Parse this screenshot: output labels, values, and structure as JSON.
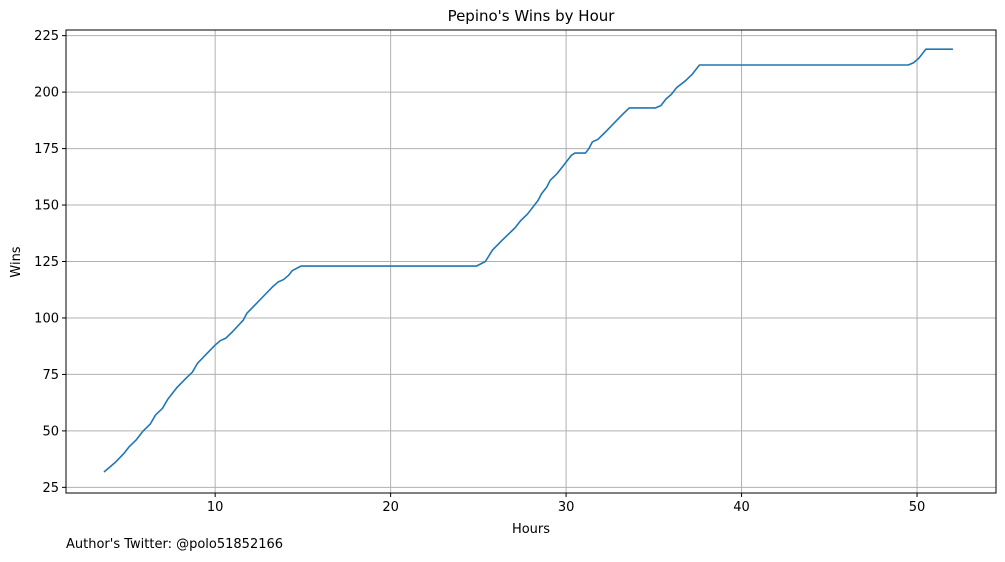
{
  "chart_data": {
    "type": "line",
    "title": "Pepino's Wins by Hour",
    "xlabel": "Hours",
    "ylabel": "Wins",
    "xlim": [
      1.5,
      54.5
    ],
    "ylim": [
      22.5,
      227.5
    ],
    "x_ticks": [
      10,
      20,
      30,
      40,
      50
    ],
    "y_ticks": [
      25,
      50,
      75,
      100,
      125,
      150,
      175,
      200,
      225
    ],
    "grid": true,
    "series": [
      {
        "color": "#1f77b4",
        "points": [
          [
            3.7,
            32
          ],
          [
            4.3,
            36
          ],
          [
            4.8,
            40
          ],
          [
            5.1,
            43
          ],
          [
            5.5,
            46
          ],
          [
            5.9,
            50
          ],
          [
            6.3,
            53
          ],
          [
            6.6,
            57
          ],
          [
            7.0,
            60
          ],
          [
            7.3,
            64
          ],
          [
            7.6,
            67
          ],
          [
            7.8,
            69
          ],
          [
            8.3,
            73
          ],
          [
            8.7,
            76
          ],
          [
            9.0,
            80
          ],
          [
            9.5,
            84
          ],
          [
            10.0,
            88
          ],
          [
            10.3,
            90
          ],
          [
            10.6,
            91
          ],
          [
            11.0,
            94
          ],
          [
            11.6,
            99
          ],
          [
            11.8,
            102
          ],
          [
            12.3,
            106
          ],
          [
            12.8,
            110
          ],
          [
            13.3,
            114
          ],
          [
            13.6,
            116
          ],
          [
            13.9,
            117
          ],
          [
            14.2,
            119
          ],
          [
            14.4,
            121
          ],
          [
            14.9,
            123
          ],
          [
            15.5,
            123
          ],
          [
            20,
            123
          ],
          [
            24.9,
            123
          ],
          [
            25.4,
            125
          ],
          [
            25.8,
            130
          ],
          [
            26.3,
            134
          ],
          [
            26.7,
            137
          ],
          [
            27.1,
            140
          ],
          [
            27.4,
            143
          ],
          [
            27.8,
            146
          ],
          [
            28.1,
            149
          ],
          [
            28.4,
            152
          ],
          [
            28.6,
            155
          ],
          [
            28.9,
            158
          ],
          [
            29.1,
            161
          ],
          [
            29.5,
            164
          ],
          [
            29.9,
            168
          ],
          [
            30.3,
            172
          ],
          [
            30.5,
            173
          ],
          [
            31.1,
            173
          ],
          [
            31.3,
            175
          ],
          [
            31.5,
            178
          ],
          [
            31.8,
            179
          ],
          [
            32.2,
            182
          ],
          [
            32.7,
            186
          ],
          [
            33.2,
            190
          ],
          [
            33.6,
            193
          ],
          [
            35.1,
            193
          ],
          [
            35.4,
            194
          ],
          [
            35.7,
            197
          ],
          [
            36.0,
            199
          ],
          [
            36.3,
            202
          ],
          [
            36.8,
            205
          ],
          [
            37.2,
            208
          ],
          [
            37.6,
            212
          ],
          [
            40,
            212
          ],
          [
            45,
            212
          ],
          [
            49.5,
            212
          ],
          [
            49.8,
            213
          ],
          [
            50.1,
            215
          ],
          [
            50.5,
            219
          ],
          [
            52.0,
            219
          ]
        ]
      }
    ]
  },
  "footnote": "Author's Twitter: @polo51852166"
}
